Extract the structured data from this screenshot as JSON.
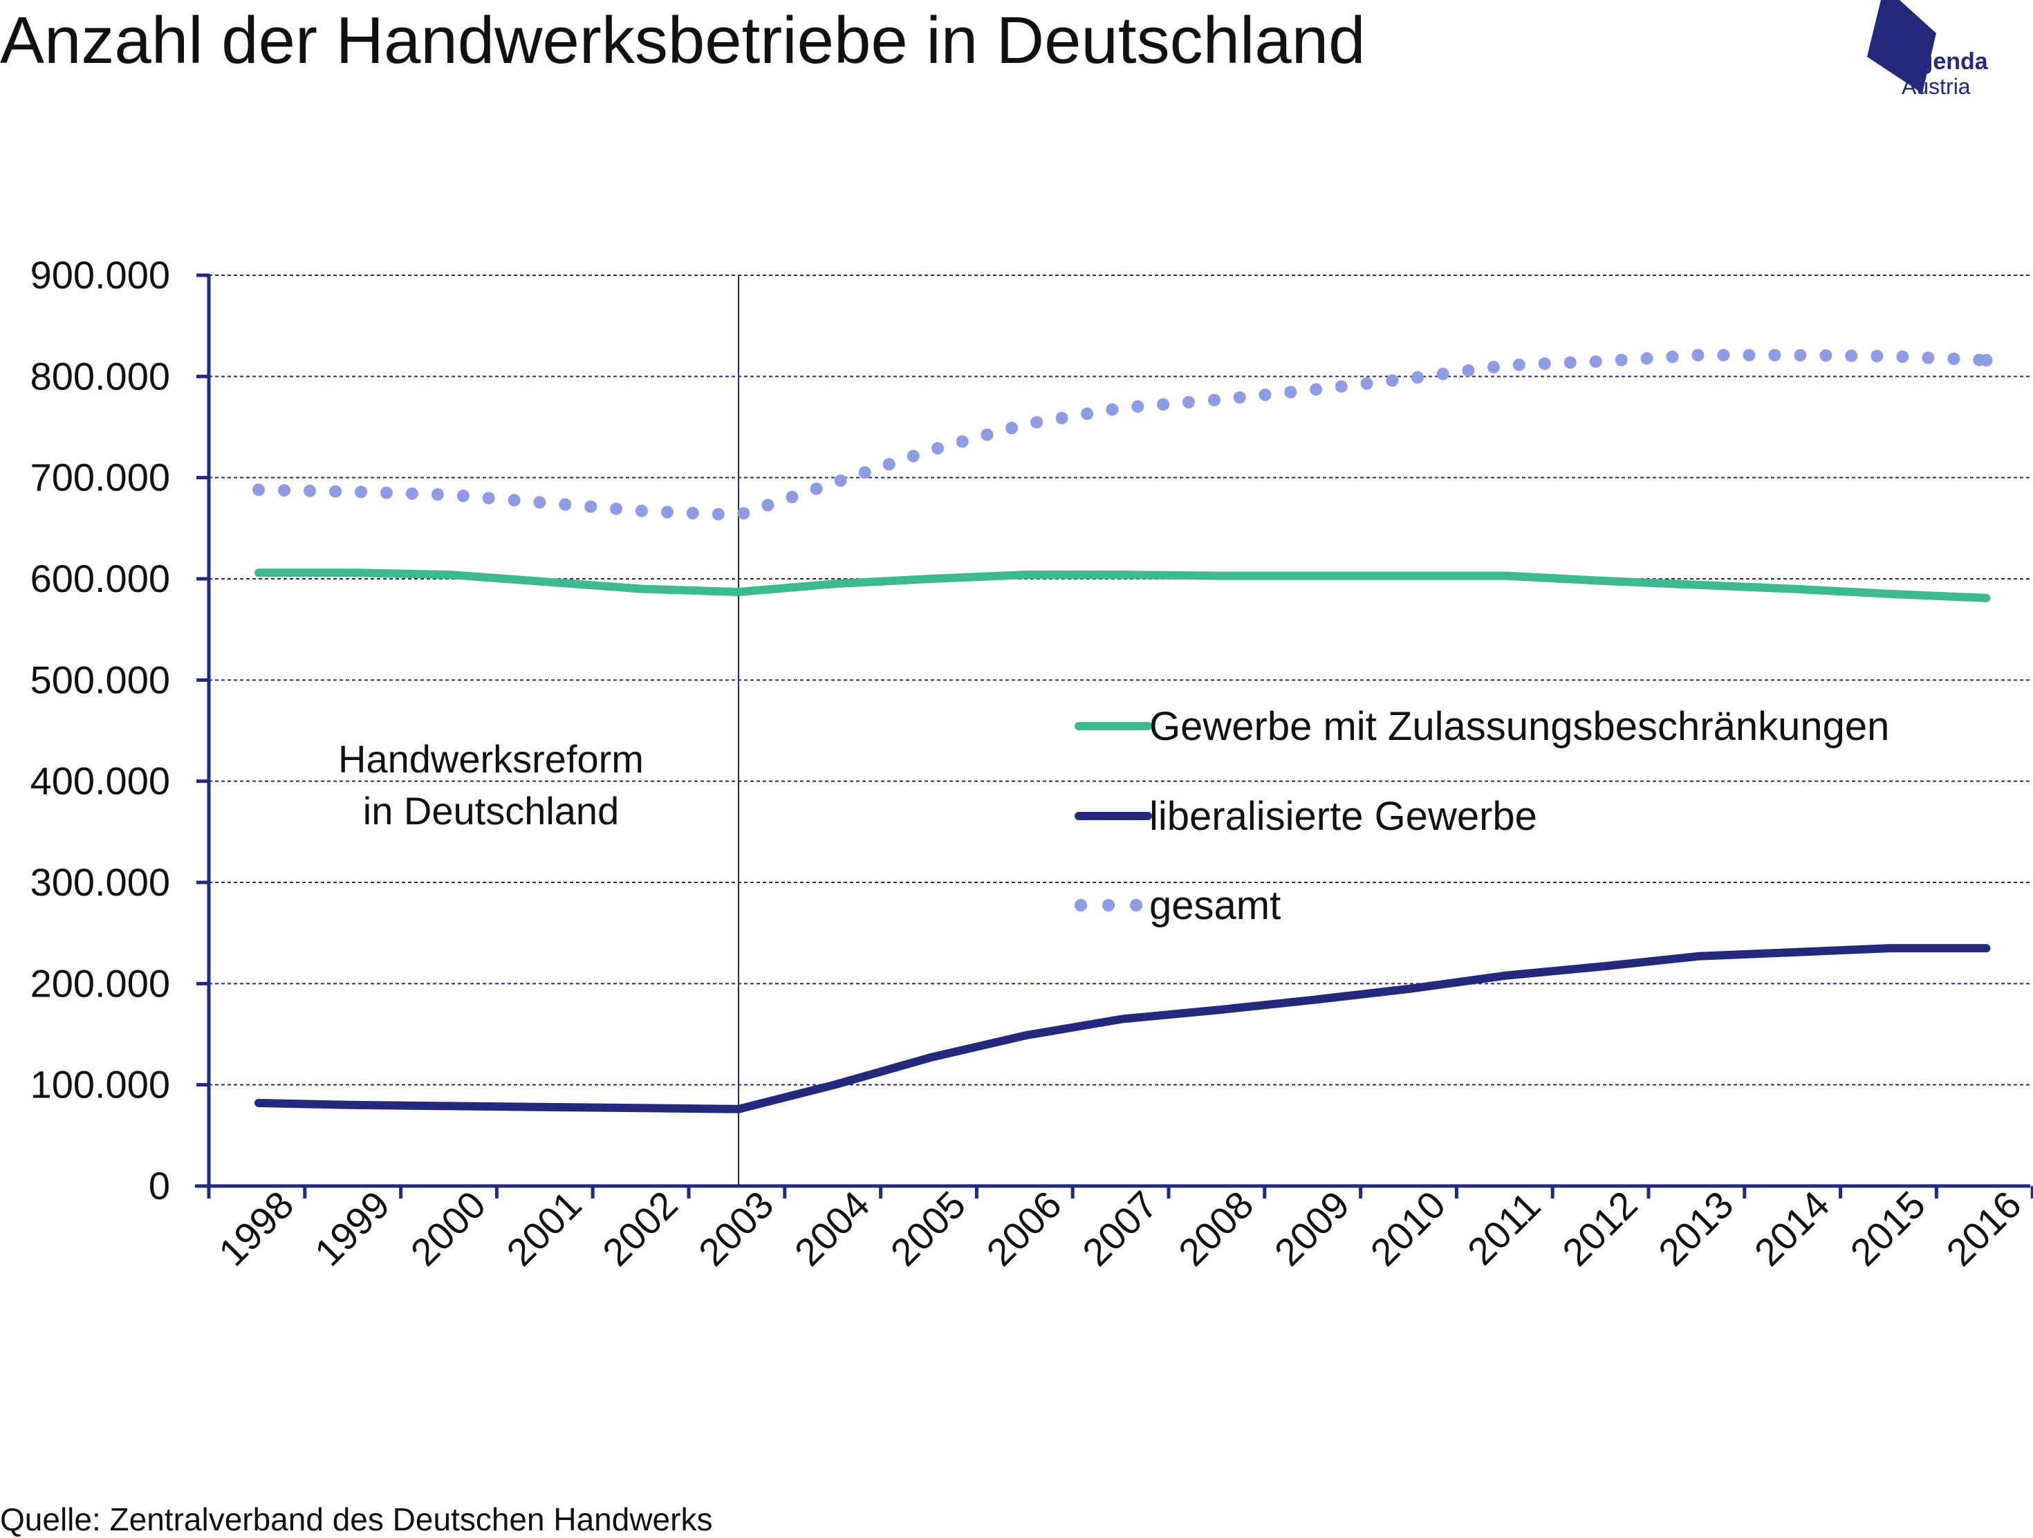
{
  "title": "Anzahl der Handwerksbetriebe in Deutschland",
  "logo": {
    "line1": "Agenda",
    "line2": "Austria"
  },
  "source": "Quelle: Zentralverband des Deutschen Handwerks",
  "colors": {
    "restricted": "#3dba8e",
    "liberalized": "#232a7d",
    "total": "#8e9be6",
    "axis": "#232a7d",
    "grid": "#232a7d",
    "logo": "#232a7d",
    "text": "#111111"
  },
  "chart_data": {
    "type": "line",
    "title": "Anzahl der Handwerksbetriebe in Deutschland",
    "xlabel": "",
    "ylabel": "",
    "ylim": [
      0,
      900000
    ],
    "y_ticks": [
      0,
      100000,
      200000,
      300000,
      400000,
      500000,
      600000,
      700000,
      800000,
      900000
    ],
    "y_tick_labels": [
      "0",
      "100.000",
      "200.000",
      "300.000",
      "400.000",
      "500.000",
      "600.000",
      "700.000",
      "800.000",
      "900.000"
    ],
    "grid": "horizontal dashed",
    "legend_placement": "center-right",
    "categories": [
      "1998",
      "1999",
      "2000",
      "2001",
      "2002",
      "2003",
      "2004",
      "2005",
      "2006",
      "2007",
      "2008",
      "2009",
      "2010",
      "2011",
      "2012",
      "2013",
      "2014",
      "2015",
      "2016"
    ],
    "series": [
      {
        "name": "Gewerbe mit Zulassungsbeschränkungen",
        "style": "solid-thick",
        "values": [
          606000,
          606000,
          604000,
          597000,
          590000,
          587000,
          595000,
          600000,
          604000,
          604000,
          603000,
          603000,
          603000,
          603000,
          598000,
          594000,
          590000,
          585000,
          581000
        ]
      },
      {
        "name": "liberalisierte Gewerbe",
        "style": "solid-thick",
        "values": [
          82000,
          80000,
          79000,
          78000,
          77000,
          76000,
          100000,
          127000,
          149000,
          165000,
          174000,
          184000,
          195000,
          208000,
          217000,
          227000,
          231000,
          235000,
          235000
        ]
      },
      {
        "name": "gesamt",
        "style": "dotted",
        "values": [
          688000,
          686000,
          683000,
          675000,
          667000,
          663000,
          695000,
          727000,
          753000,
          769000,
          777000,
          787000,
          798000,
          811000,
          815000,
          821000,
          821000,
          820000,
          816000
        ]
      }
    ],
    "annotations": [
      {
        "text_line1": "Handwerksreform",
        "text_line2": "in Deutschland",
        "at_category": "2003",
        "kind": "vertical-line"
      }
    ]
  }
}
